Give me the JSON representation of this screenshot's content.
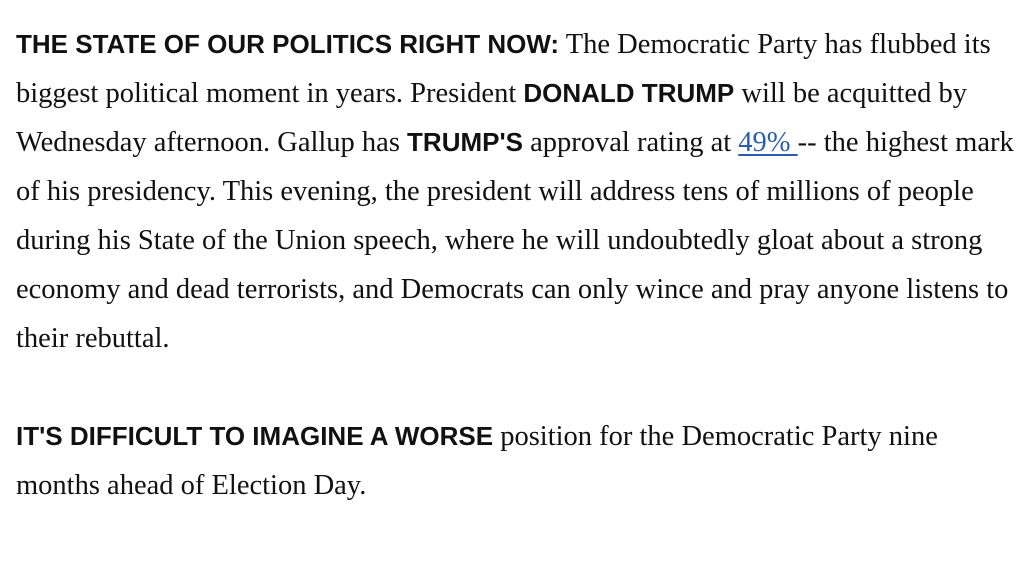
{
  "article": {
    "p1": {
      "lead": "THE STATE OF OUR POLITICS RIGHT NOW:",
      "t1": " The Democratic Party has flubbed its biggest political moment in years. President ",
      "name1": "DONALD TRUMP",
      "t2": " will be acquitted by Wednesday afternoon. Gallup has ",
      "name2": "TRUMP'S",
      "t3": " approval rating at ",
      "link_text": "49% ",
      "t4": "-- the highest mark of his presidency. This evening, the president will address tens of millions of people during his State of the Union speech, where he will undoubtedly gloat about a strong economy and dead terrorists, and Democrats can only wince and pray anyone listens to their rebuttal."
    },
    "p2": {
      "lead": "IT'S DIFFICULT TO IMAGINE A WORSE",
      "t1": " position for the Democratic Party nine months ahead of Election Day."
    }
  },
  "colors": {
    "text": "#111111",
    "link": "#2a5db0",
    "background": "#ffffff"
  }
}
